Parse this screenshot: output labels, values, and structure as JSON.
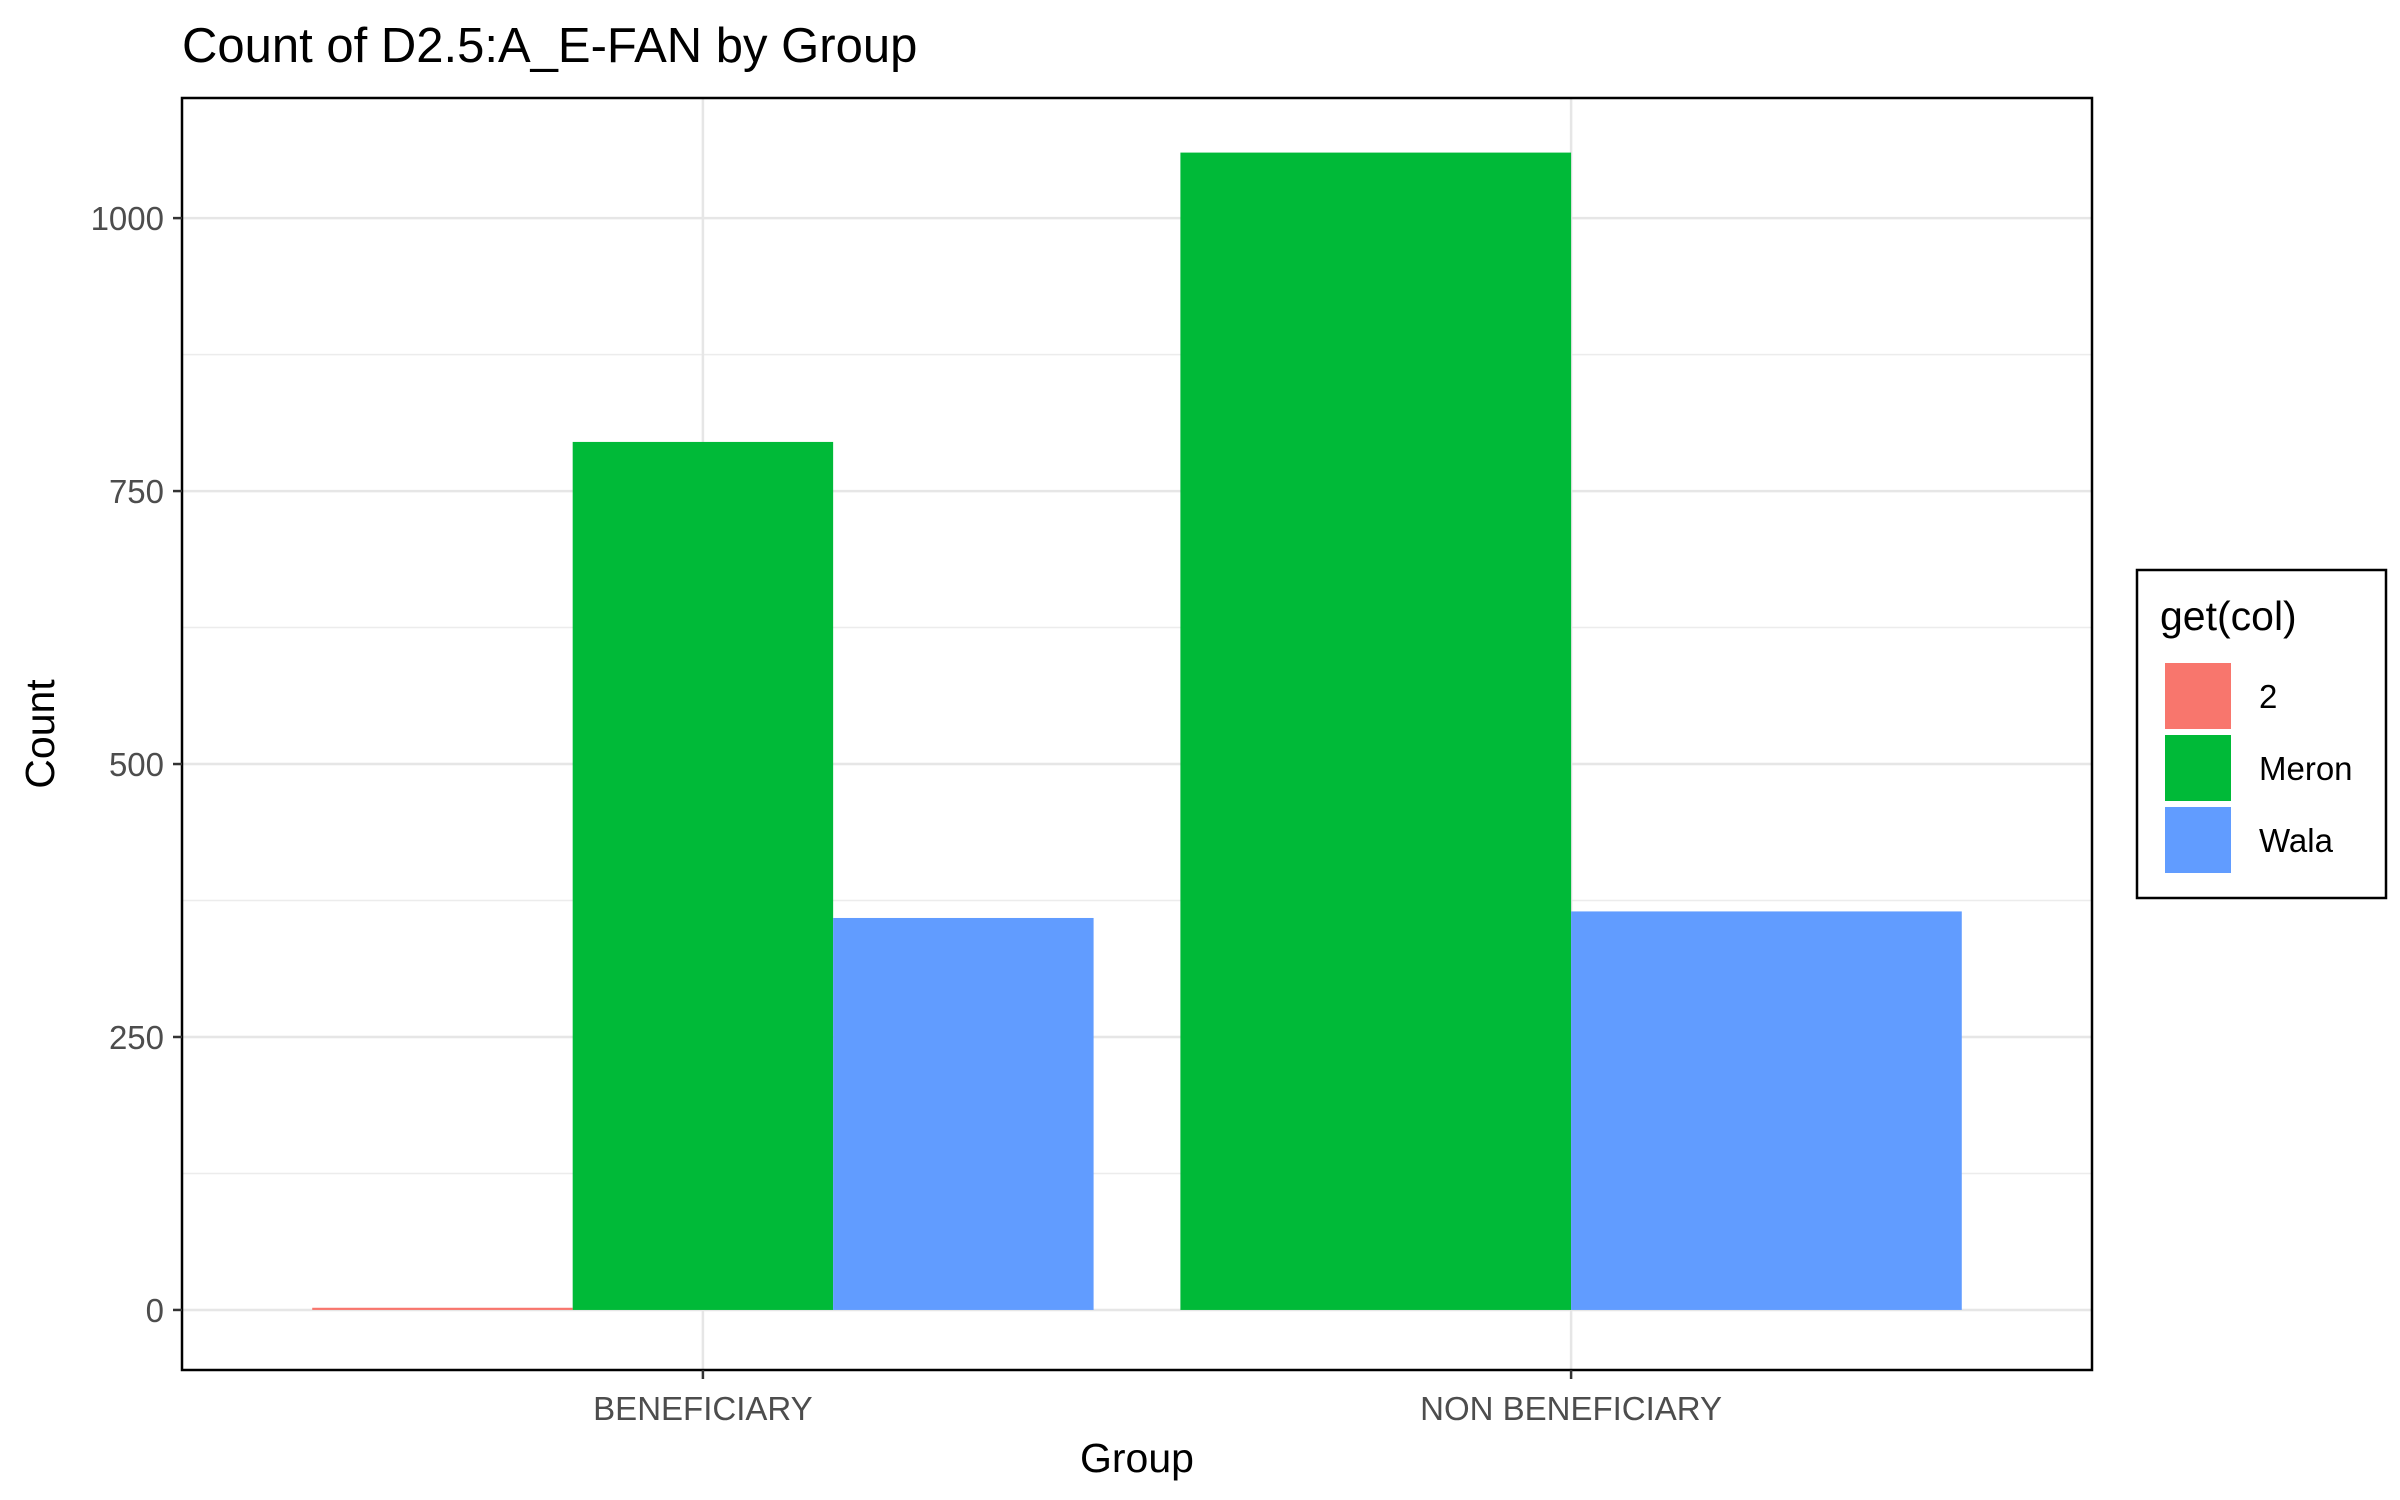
{
  "chart_data": {
    "type": "bar",
    "title": "Count of D2.5:A_E-FAN by Group",
    "xlabel": "Group",
    "ylabel": "Count",
    "categories": [
      "BENEFICIARY",
      "NON BENEFICIARY"
    ],
    "ylim": [
      -55,
      1110
    ],
    "yticks": [
      0,
      250,
      500,
      750,
      1000
    ],
    "grid": true,
    "legend": {
      "title": "get(col)",
      "position": "right",
      "entries": [
        "2",
        "Meron",
        "Wala"
      ]
    },
    "series": [
      {
        "name": "2",
        "color": "#F8766D",
        "values": [
          2,
          null
        ]
      },
      {
        "name": "Meron",
        "color": "#00BA38",
        "values": [
          795,
          1060
        ]
      },
      {
        "name": "Wala",
        "color": "#619CFF",
        "values": [
          359,
          365
        ]
      }
    ]
  }
}
